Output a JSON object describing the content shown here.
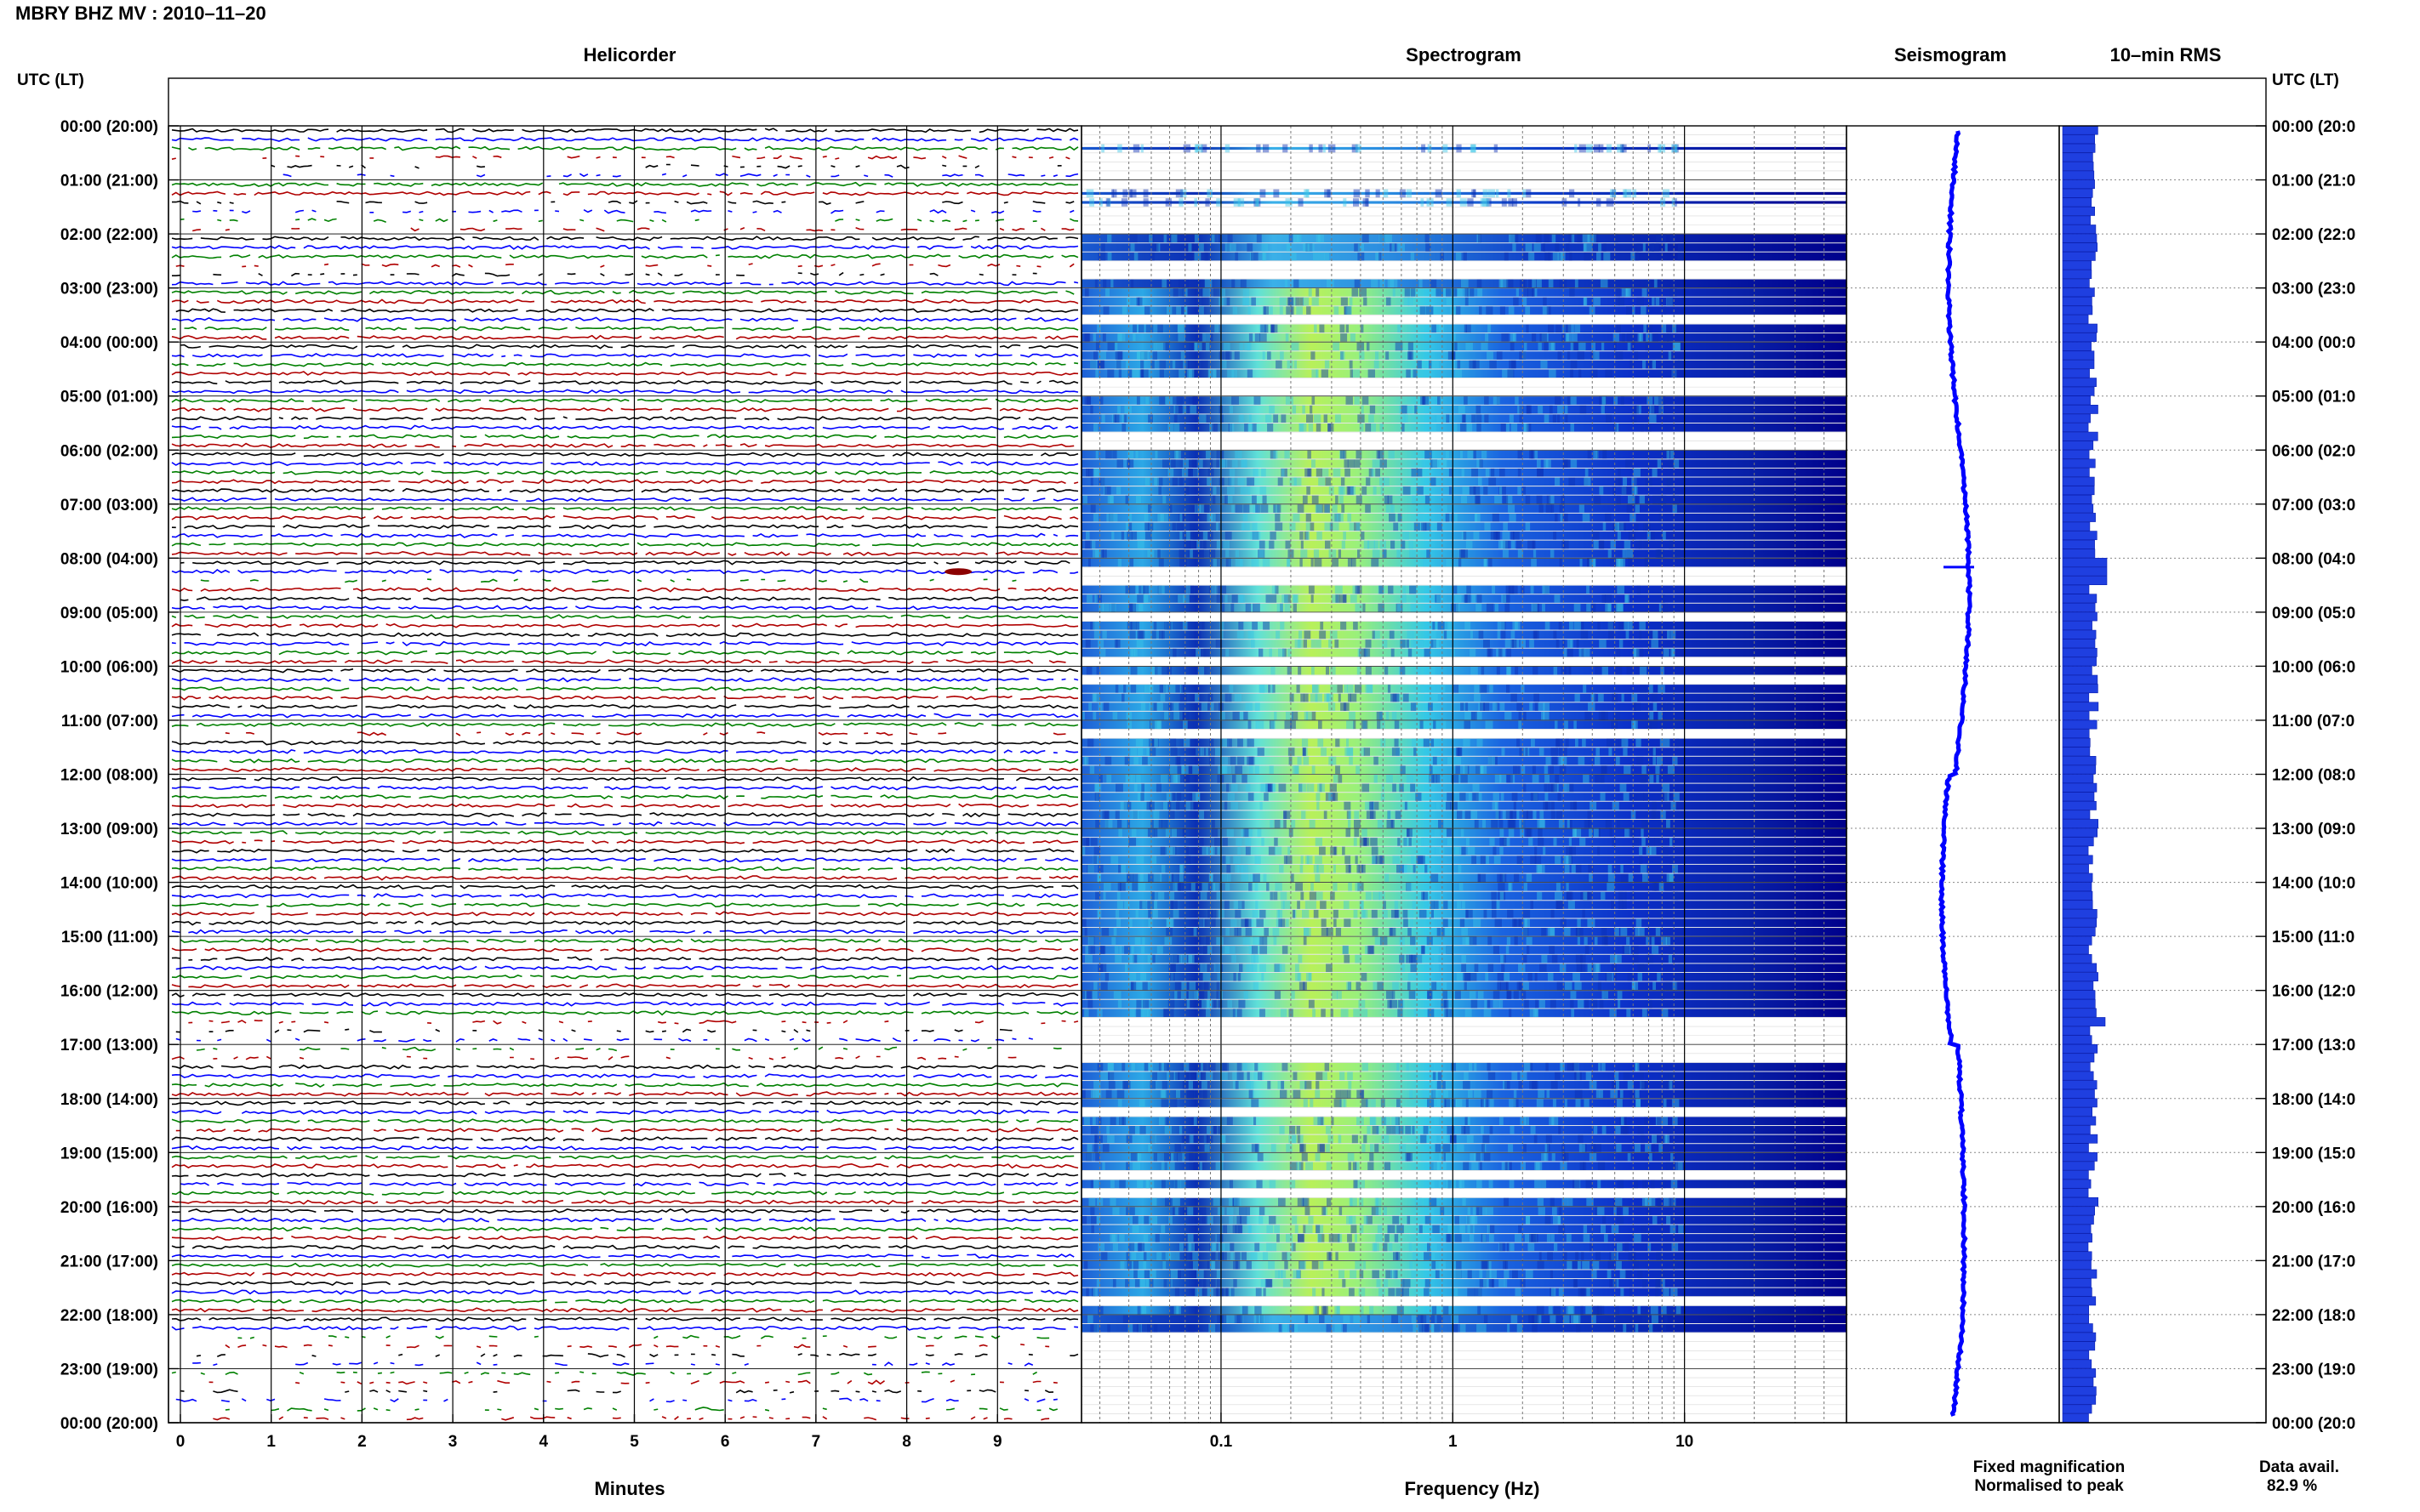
{
  "page_title": "MBRY BHZ MV : 2010–11–20",
  "panels": {
    "helicorder": "Helicorder",
    "spectrogram": "Spectrogram",
    "seismogram": "Seismogram",
    "rms": "10–min RMS"
  },
  "time_axis": {
    "left_header": "UTC (LT)",
    "right_header": "UTC (LT)",
    "labels": [
      "00:00 (20:00)",
      "01:00 (21:00)",
      "02:00 (22:00)",
      "03:00 (23:00)",
      "04:00 (00:00)",
      "05:00 (01:00)",
      "06:00 (02:00)",
      "07:00 (03:00)",
      "08:00 (04:00)",
      "09:00 (05:00)",
      "10:00 (06:00)",
      "11:00 (07:00)",
      "12:00 (08:00)",
      "13:00 (09:00)",
      "14:00 (10:00)",
      "15:00 (11:00)",
      "16:00 (12:00)",
      "17:00 (13:00)",
      "18:00 (14:00)",
      "19:00 (15:00)",
      "20:00 (16:00)",
      "21:00 (17:00)",
      "22:00 (18:00)",
      "23:00 (19:00)",
      "00:00 (20:00)"
    ],
    "right_labels": [
      "00:00 (20:0",
      "01:00 (21:0",
      "02:00 (22:0",
      "03:00 (23:0",
      "04:00 (00:0",
      "05:00 (01:0",
      "06:00 (02:0",
      "07:00 (03:0",
      "08:00 (04:0",
      "09:00 (05:0",
      "10:00 (06:0",
      "11:00 (07:0",
      "12:00 (08:0",
      "13:00 (09:0",
      "14:00 (10:0",
      "15:00 (11:0",
      "16:00 (12:0",
      "17:00 (13:0",
      "18:00 (14:0",
      "19:00 (15:0",
      "20:00 (16:0",
      "21:00 (17:0",
      "22:00 (18:0",
      "23:00 (19:0",
      "00:00 (20:0"
    ]
  },
  "helicorder_axis": {
    "ticks": [
      "0",
      "1",
      "2",
      "3",
      "4",
      "5",
      "6",
      "7",
      "8",
      "9"
    ],
    "xlabel": "Minutes"
  },
  "spectrogram_axis": {
    "ticks": [
      "0.1",
      "1",
      "10"
    ],
    "xlabel": "Frequency (Hz)",
    "scale": "log"
  },
  "legend": {
    "fixed": {
      "text": "Fixed magnification",
      "color": "#0000ff"
    },
    "normalised": {
      "text": "Normalised to peak",
      "color": "#ff0000"
    }
  },
  "data_availability": {
    "label": "Data avail.",
    "value": "82.9 %"
  },
  "colors": {
    "trace_cycle": [
      "#000000",
      "#0000ff",
      "#008000",
      "#b00000"
    ],
    "spectrogram_base": "#00008b",
    "accent": "#0000ff"
  },
  "chart_data": {
    "type": "heatmap",
    "title": "MBRY BHZ MV : 2010–11–20",
    "xlabel": "Frequency (Hz)",
    "x_scale": "log",
    "xlim": [
      0.025,
      50
    ],
    "ylim": [
      "00:00",
      "24:00"
    ],
    "helicorder_xlim": [
      0,
      10
    ],
    "rows_per_hour": 6,
    "data_availability_pct": 82.9,
    "data_gaps_utc": [
      [
        "00:30",
        "01:00"
      ],
      [
        "01:20",
        "01:50"
      ],
      [
        "02:30",
        "02:50"
      ],
      [
        "08:20",
        "08:30"
      ],
      [
        "11:10",
        "11:20"
      ],
      [
        "16:30",
        "17:20"
      ],
      [
        "22:20",
        "24:00"
      ]
    ],
    "events_utc": [
      "08:10"
    ],
    "spectral_energy_band_hz": [
      0.15,
      1.0
    ]
  }
}
